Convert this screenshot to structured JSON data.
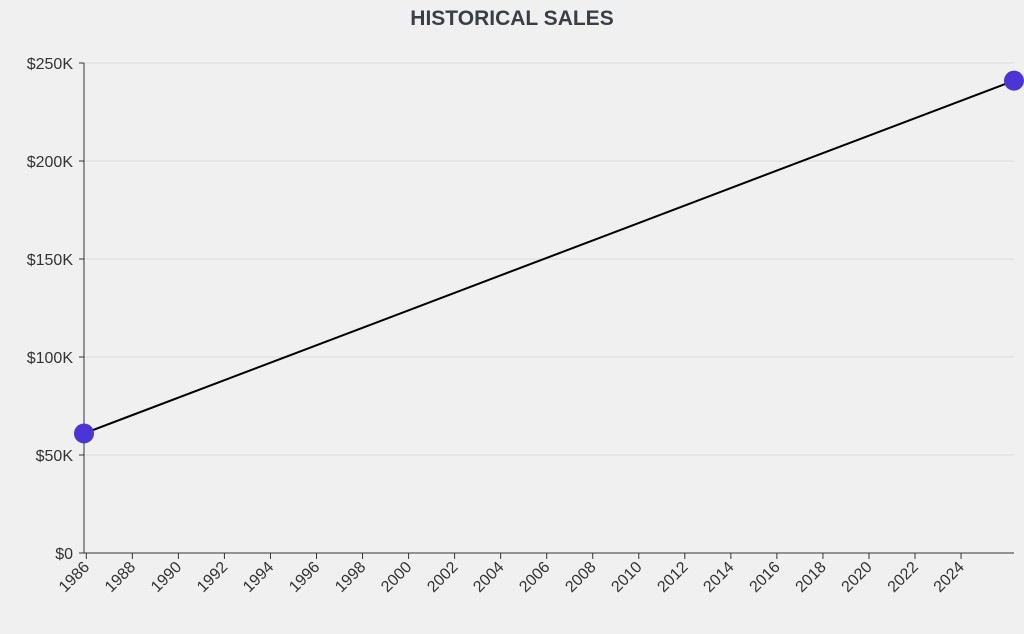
{
  "chart_data": {
    "type": "line",
    "title": "HISTORICAL SALES",
    "xlabel": "",
    "ylabel": "",
    "x": [
      1985.9,
      2026.3
    ],
    "series": [
      {
        "values": [
          61000,
          241000
        ],
        "color": "#4b35d6"
      }
    ],
    "xlim": [
      1985.9,
      2026.3
    ],
    "ylim": [
      0,
      250000
    ],
    "x_ticks": [
      1986,
      1988,
      1990,
      1992,
      1994,
      1996,
      1998,
      2000,
      2002,
      2004,
      2006,
      2008,
      2010,
      2012,
      2014,
      2016,
      2018,
      2020,
      2022,
      2024
    ],
    "y_ticks": [
      0,
      50000,
      100000,
      150000,
      200000,
      250000
    ],
    "y_tick_labels": [
      "$0",
      "$50K",
      "$100K",
      "$150K",
      "$200K",
      "$250K"
    ],
    "grid": "horizontal",
    "legend": "none",
    "line_color": "#000000",
    "marker_color": "#4b35d6"
  }
}
